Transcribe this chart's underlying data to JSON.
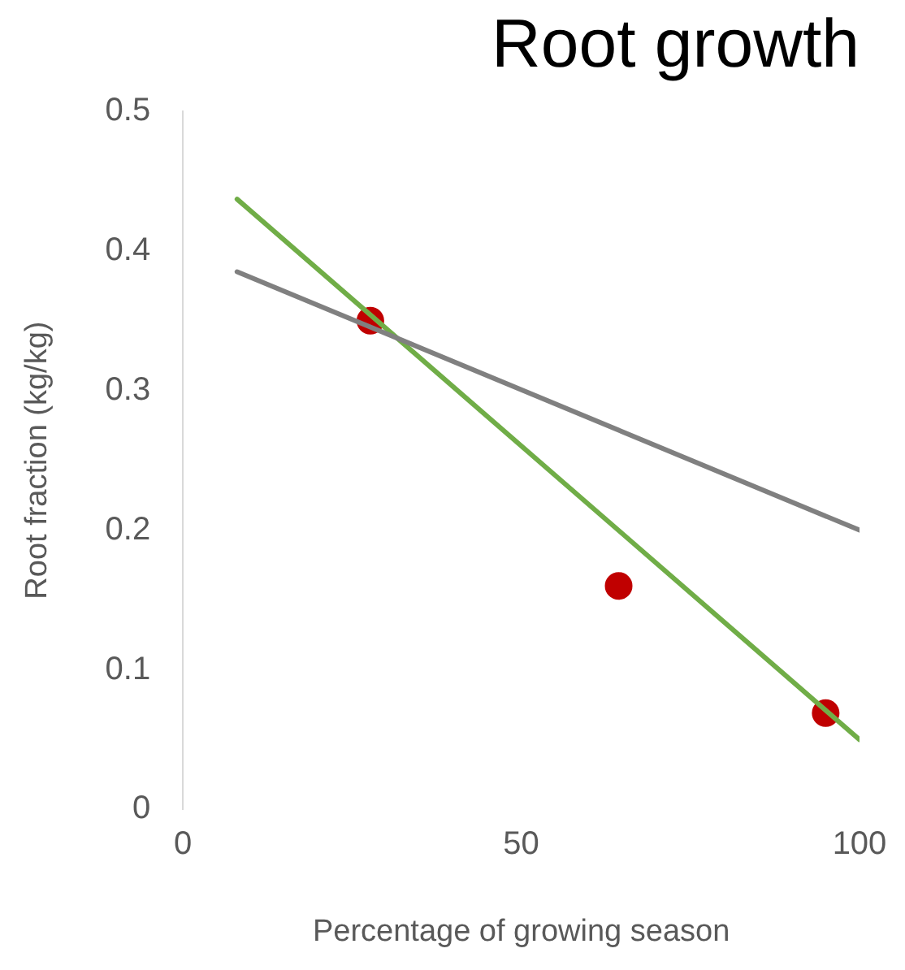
{
  "chart_data": {
    "type": "scatter",
    "title": "Root growth",
    "xlabel": "Percentage of growing season",
    "ylabel": "Root fraction (kg/kg)",
    "xlim": [
      0,
      100
    ],
    "xticks": [
      0,
      50,
      100
    ],
    "ylim": [
      0,
      0.5
    ],
    "yticks": [
      0,
      0.1,
      0.2,
      0.3,
      0.4,
      0.5
    ],
    "grid": false,
    "legend": false,
    "marker": "circle",
    "series": [
      {
        "type": "line",
        "color": "#808080",
        "x": [
          8,
          100
        ],
        "values": [
          0.385,
          0.2
        ],
        "marker": "none"
      },
      {
        "type": "line",
        "color": "#70ad47",
        "x": [
          8,
          100
        ],
        "values": [
          0.437,
          0.05
        ],
        "marker": "none"
      },
      {
        "type": "scatter",
        "color": "#c00000",
        "x": [
          27.7,
          64.4,
          95
        ],
        "values": [
          0.35,
          0.16,
          0.069
        ]
      }
    ]
  }
}
